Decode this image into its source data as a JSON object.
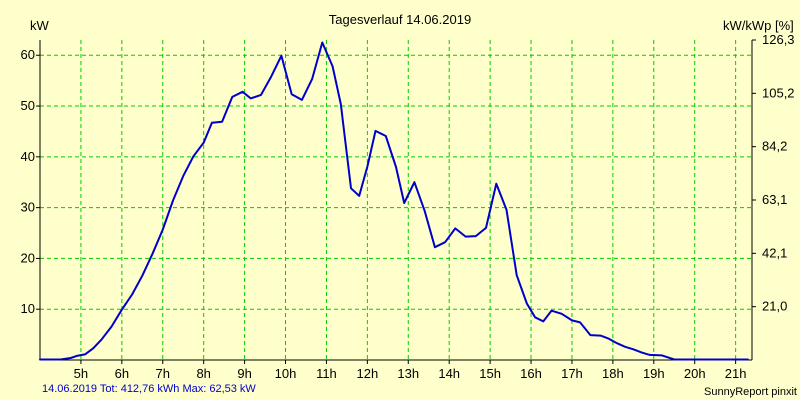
{
  "chart_data": {
    "type": "line",
    "title": "Tagesverlauf 14.06.2019",
    "ylabel_left": "kW",
    "ylabel_right": "kW/kWp [%]",
    "ylim": [
      0,
      63
    ],
    "xlim": [
      4.0,
      21.4
    ],
    "grid": true,
    "y_ticks_left": [
      {
        "value": 10,
        "label": "10"
      },
      {
        "value": 20,
        "label": "20"
      },
      {
        "value": 30,
        "label": "30"
      },
      {
        "value": 40,
        "label": "40"
      },
      {
        "value": 50,
        "label": "50"
      },
      {
        "value": 60,
        "label": "60"
      }
    ],
    "y_ticks_right": [
      {
        "value": 10.5,
        "label": "21,0"
      },
      {
        "value": 21.0,
        "label": "42,1"
      },
      {
        "value": 31.5,
        "label": "63,1"
      },
      {
        "value": 42.0,
        "label": "84,2"
      },
      {
        "value": 52.5,
        "label": "105,2"
      },
      {
        "value": 63.0,
        "label": "126,3"
      }
    ],
    "x_ticks": [
      {
        "value": 5,
        "label": "5h"
      },
      {
        "value": 6,
        "label": "6h"
      },
      {
        "value": 7,
        "label": "7h"
      },
      {
        "value": 8,
        "label": "8h"
      },
      {
        "value": 9,
        "label": "9h"
      },
      {
        "value": 10,
        "label": "10h"
      },
      {
        "value": 11,
        "label": "11h"
      },
      {
        "value": 12,
        "label": "12h"
      },
      {
        "value": 13,
        "label": "13h"
      },
      {
        "value": 14,
        "label": "14h"
      },
      {
        "value": 15,
        "label": "15h"
      },
      {
        "value": 16,
        "label": "16h"
      },
      {
        "value": 17,
        "label": "17h"
      },
      {
        "value": 18,
        "label": "18h"
      },
      {
        "value": 19,
        "label": "19h"
      },
      {
        "value": 20,
        "label": "20h"
      },
      {
        "value": 21,
        "label": "21h"
      }
    ],
    "series": [
      {
        "color": "#0000cc",
        "x": [
          4.0,
          4.5,
          4.75,
          4.9,
          5.1,
          5.3,
          5.5,
          5.75,
          6.0,
          6.25,
          6.5,
          6.75,
          7.0,
          7.25,
          7.5,
          7.75,
          8.0,
          8.2,
          8.45,
          8.7,
          8.95,
          9.15,
          9.4,
          9.65,
          9.9,
          10.15,
          10.4,
          10.65,
          10.9,
          11.15,
          11.35,
          11.6,
          11.8,
          12.0,
          12.2,
          12.45,
          12.7,
          12.9,
          13.15,
          13.4,
          13.65,
          13.9,
          14.15,
          14.4,
          14.65,
          14.9,
          15.15,
          15.4,
          15.65,
          15.9,
          16.1,
          16.3,
          16.5,
          16.75,
          17.0,
          17.2,
          17.45,
          17.7,
          17.9,
          18.1,
          18.3,
          18.5,
          18.7,
          18.9,
          19.2,
          19.5,
          19.8,
          20.0,
          20.2,
          20.5,
          20.8,
          21.0,
          21.3
        ],
        "values": [
          0.1,
          0.1,
          0.4,
          0.8,
          1.1,
          2.3,
          4.0,
          6.6,
          9.9,
          12.9,
          16.6,
          20.9,
          25.7,
          31.4,
          36.2,
          40.1,
          42.8,
          46.7,
          46.9,
          51.8,
          52.8,
          51.5,
          52.2,
          55.8,
          59.9,
          52.3,
          51.2,
          55.3,
          62.5,
          57.8,
          50.4,
          33.8,
          32.3,
          38.1,
          45.1,
          44.1,
          38.0,
          30.9,
          35.0,
          29.4,
          22.2,
          23.2,
          25.9,
          24.3,
          24.4,
          26.0,
          34.7,
          29.6,
          16.7,
          11.1,
          8.4,
          7.6,
          9.7,
          9.1,
          7.8,
          7.4,
          4.9,
          4.8,
          4.2,
          3.3,
          2.6,
          2.1,
          1.5,
          1.0,
          0.9,
          0.1,
          0.1,
          0.1,
          0.1,
          0.1,
          0.1,
          0.1,
          0.1
        ]
      }
    ]
  },
  "footer": {
    "left_text": "14.06.2019 Tot: 412,76 kWh Max: 62,53 kW",
    "right_text": "SunnyReport pinxit"
  },
  "colors": {
    "background": "#ffffcc",
    "grid": "#00cc00",
    "line": "#0000cc",
    "footer_left": "#0000cc",
    "axis": "#000000"
  }
}
